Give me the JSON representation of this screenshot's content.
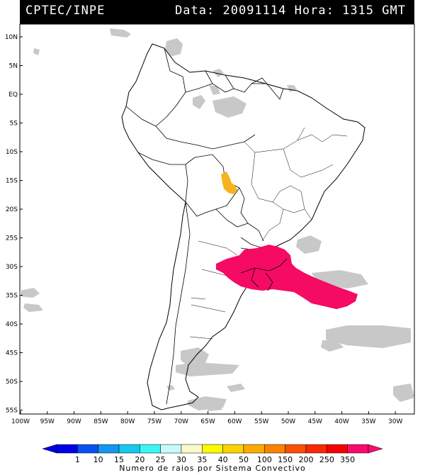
{
  "header": {
    "source": "CPTEC/INPE",
    "data_label": "Data:",
    "date": "20091114",
    "hora_label": "Hora:",
    "time": "1315",
    "tz": "GMT"
  },
  "axes": {
    "lat_labels": [
      "10N",
      "5N",
      "EQ",
      "5S",
      "10S",
      "15S",
      "20S",
      "25S",
      "30S",
      "35S",
      "40S",
      "45S",
      "50S",
      "55S"
    ],
    "lon_labels": [
      "100W",
      "95W",
      "90W",
      "85W",
      "80W",
      "75W",
      "70W",
      "65W",
      "60W",
      "55W",
      "50W",
      "45W",
      "40W",
      "35W",
      "30W"
    ]
  },
  "legend": {
    "title": "Numero de raios por Sistema Convectivo",
    "labels": [
      "1",
      "10",
      "15",
      "20",
      "25",
      "30",
      "35",
      "40",
      "50",
      "100",
      "150",
      "200",
      "250",
      "350"
    ],
    "colors": [
      "#0000e6",
      "#0a50f0",
      "#1496f0",
      "#14c8f0",
      "#3cf5f5",
      "#c8fafa",
      "#fafac8",
      "#fafa00",
      "#fad200",
      "#faaa00",
      "#fa8200",
      "#fa5000",
      "#fa2800",
      "#f50000",
      "#fa0a6e"
    ]
  },
  "systems": [
    {
      "name": "amazon-system",
      "color": "#f5b41e",
      "max_lightning": "100"
    },
    {
      "name": "southern-system",
      "color": "#f50a64",
      "max_lightning": "350"
    }
  ],
  "colors": {
    "cloud": "#c8c8c8",
    "border": "#000000",
    "header_bg": "#000000"
  }
}
